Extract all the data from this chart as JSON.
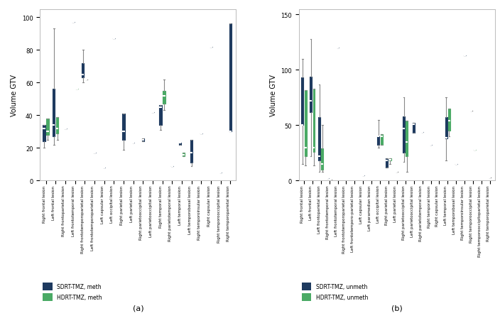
{
  "panel_a": {
    "title": "(a)",
    "ylabel": "Volume GTV",
    "ylim": [
      0,
      105
    ],
    "yticks": [
      0,
      20,
      40,
      60,
      80,
      100
    ],
    "legend": [
      "SDRT-TMZ, meth",
      "HDRT-TMZ, meth"
    ],
    "sdrt_color": "#1e3a5f",
    "hdrt_color": "#4aaa65",
    "categories": [
      "Right frontal lesion",
      "Left frontal lesion",
      "Right frontoparietal lesion",
      "Left frontotemporal lesion",
      "Right frontotemporoparietal lesion",
      "Left frontotemporoparietal lesion",
      "Left capsular lesion",
      "Left occipital lesion",
      "Right parietal lesion",
      "Left parietal lesion",
      "Right parietooccipital lesion",
      "Left parietooccipital lesion",
      "Right temporal lesion",
      "Right parietotemporal lesion",
      "Left temporal lesion",
      "Left temporobasal lesion",
      "Right temporoinsular lesion",
      "Right capsular lesion",
      "Right temporooccipital lesion",
      "Right temporoparietal lesion"
    ],
    "sdrt_boxes": [
      {
        "whislo": 20,
        "q1": 24,
        "med": 32,
        "q3": 34,
        "whishi": 34
      },
      {
        "whislo": 22,
        "q1": 27,
        "med": 34,
        "q3": 56,
        "whishi": 93
      },
      {
        "whislo": 32,
        "q1": 32,
        "med": 32,
        "q3": 32,
        "whishi": 32
      },
      {
        "whislo": 97,
        "q1": 97,
        "med": 97,
        "q3": 97,
        "whishi": 97
      },
      {
        "whislo": 60,
        "q1": 63,
        "med": 65,
        "q3": 72,
        "whishi": 80
      },
      {
        "whislo": 17,
        "q1": 17,
        "med": 17,
        "q3": 17,
        "whishi": 17
      },
      {
        "whislo": 8,
        "q1": 8,
        "med": 8,
        "q3": 8,
        "whishi": 8
      },
      {
        "whislo": 87,
        "q1": 87,
        "med": 87,
        "q3": 87,
        "whishi": 87
      },
      {
        "whislo": 19,
        "q1": 25,
        "med": 30,
        "q3": 41,
        "whishi": 41
      },
      {
        "whislo": 23,
        "q1": 23,
        "med": 23,
        "q3": 23,
        "whishi": 23
      },
      {
        "whislo": 24,
        "q1": 24,
        "med": 25,
        "q3": 26,
        "whishi": 26
      },
      {
        "whislo": 42,
        "q1": 42,
        "med": 42,
        "q3": 42,
        "whishi": 42
      },
      {
        "whislo": 31,
        "q1": 34,
        "med": 45,
        "q3": 46,
        "whishi": 46
      },
      {
        "whislo": 9,
        "q1": 9,
        "med": 9,
        "q3": 9,
        "whishi": 9
      },
      {
        "whislo": 22,
        "q1": 22,
        "med": 23,
        "q3": 23,
        "whishi": 23
      },
      {
        "whislo": 9,
        "q1": 11,
        "med": 17,
        "q3": 25,
        "whishi": 25
      },
      {
        "whislo": 29,
        "q1": 29,
        "med": 29,
        "q3": 29,
        "whishi": 29
      },
      {
        "whislo": 82,
        "q1": 82,
        "med": 82,
        "q3": 82,
        "whishi": 82
      },
      {
        "whislo": 5,
        "q1": 5,
        "med": 5,
        "q3": 5,
        "whishi": 5
      },
      {
        "whislo": 30,
        "q1": 30,
        "med": 30,
        "q3": 96,
        "whishi": 96
      }
    ],
    "hdrt_boxes": [
      {
        "whislo": 25,
        "q1": 28,
        "med": 30,
        "q3": 38,
        "whishi": 38
      },
      {
        "whislo": 25,
        "q1": 29,
        "med": 32,
        "q3": 39,
        "whishi": 39
      },
      null,
      {
        "whislo": 56,
        "q1": 56,
        "med": 56,
        "q3": 56,
        "whishi": 56
      },
      {
        "whislo": 62,
        "q1": 62,
        "med": 62,
        "q3": 62,
        "whishi": 62
      },
      null,
      null,
      null,
      null,
      null,
      null,
      null,
      {
        "whislo": 43,
        "q1": 47,
        "med": 52,
        "q3": 55,
        "whishi": 62
      },
      null,
      {
        "whislo": 15,
        "q1": 15,
        "med": 16,
        "q3": 17,
        "whishi": 17
      },
      null,
      null,
      null,
      null,
      null
    ]
  },
  "panel_b": {
    "title": "(b)",
    "ylabel": "Volume GTV",
    "ylim": [
      0,
      155
    ],
    "yticks": [
      0,
      50,
      100,
      150
    ],
    "legend": [
      "SDRT-TMZ, unmeth",
      "HDRT-TMZ, unmeth"
    ],
    "sdrt_color": "#1e3a5f",
    "hdrt_color": "#4aaa65",
    "categories": [
      "Right frontal lesion",
      "Left frontal lesion",
      "Left frontoparietal lesion",
      "Right frontotemporal lesion",
      "Left frontotemporal lesion",
      "Right frontotemporoparietal lesion",
      "Left frontotemporo-parietal lesion",
      "Left capsular lesion",
      "Left paramedian lesion",
      "Left occipital lesion",
      "Right parietal lesion",
      "Left parietal lesion",
      "Right parietooccipital lesion",
      "Left parietooccipital lesion",
      "Right parietotemporal lesion",
      "Right temporal lesion",
      "Right capsular lesion",
      "Left temporal lesion",
      "Left temporobasal lesion",
      "Right temporoinsular lesion",
      "Right temporooccipital lesion",
      "Right temporooccipitoparietal lesion",
      "Right temporoparietal lesion"
    ],
    "sdrt_boxes": [
      {
        "whislo": 15,
        "q1": 50,
        "med": 50,
        "q3": 93,
        "whishi": 110
      },
      {
        "whislo": 22,
        "q1": 62,
        "med": 72,
        "q3": 94,
        "whishi": 128
      },
      {
        "whislo": 8,
        "q1": 18,
        "med": 22,
        "q3": 57,
        "whishi": 87
      },
      {
        "whislo": 2,
        "q1": 2,
        "med": 2,
        "q3": 2,
        "whishi": 2
      },
      {
        "whislo": 120,
        "q1": 120,
        "med": 120,
        "q3": 120,
        "whishi": 120
      },
      null,
      null,
      {
        "whislo": 5,
        "q1": 5,
        "med": 5,
        "q3": 5,
        "whishi": 5
      },
      null,
      {
        "whislo": 30,
        "q1": 32,
        "med": 40,
        "q3": 40,
        "whishi": 55
      },
      {
        "whislo": 12,
        "q1": 12,
        "med": 18,
        "q3": 20,
        "whishi": 20
      },
      {
        "whislo": 8,
        "q1": 8,
        "med": 8,
        "q3": 8,
        "whishi": 8
      },
      {
        "whislo": 17,
        "q1": 25,
        "med": 47,
        "q3": 58,
        "whishi": 75
      },
      {
        "whislo": 43,
        "q1": 43,
        "med": 51,
        "q3": 52,
        "whishi": 52
      },
      {
        "whislo": 44,
        "q1": 44,
        "med": 44,
        "q3": 44,
        "whishi": 44
      },
      {
        "whislo": 32,
        "q1": 32,
        "med": 32,
        "q3": 32,
        "whishi": 32
      },
      null,
      {
        "whislo": 18,
        "q1": 38,
        "med": 39,
        "q3": 57,
        "whishi": 75
      },
      {
        "whislo": 15,
        "q1": 15,
        "med": 15,
        "q3": 15,
        "whishi": 15
      },
      {
        "whislo": 113,
        "q1": 113,
        "med": 113,
        "q3": 113,
        "whishi": 113
      },
      {
        "whislo": 63,
        "q1": 63,
        "med": 63,
        "q3": 63,
        "whishi": 63
      },
      null,
      {
        "whislo": 3,
        "q1": 3,
        "med": 3,
        "q3": 3,
        "whishi": 3
      }
    ],
    "hdrt_boxes": [
      {
        "whislo": 14,
        "q1": 22,
        "med": 30,
        "q3": 82,
        "whishi": 82
      },
      {
        "whislo": 14,
        "q1": 26,
        "med": 30,
        "q3": 83,
        "whishi": 83
      },
      {
        "whislo": 8,
        "q1": 10,
        "med": 15,
        "q3": 29,
        "whishi": 50
      },
      {
        "whislo": 1,
        "q1": 1,
        "med": 1,
        "q3": 1,
        "whishi": 1
      },
      null,
      null,
      null,
      null,
      null,
      {
        "whislo": 32,
        "q1": 32,
        "med": 40,
        "q3": 42,
        "whishi": 42
      },
      {
        "whislo": 15,
        "q1": 18,
        "med": 19,
        "q3": 20,
        "whishi": 20
      },
      null,
      {
        "whislo": 8,
        "q1": 22,
        "med": 35,
        "q3": 54,
        "whishi": 54
      },
      null,
      null,
      null,
      null,
      {
        "whislo": 40,
        "q1": 45,
        "med": 54,
        "q3": 65,
        "whishi": 65
      },
      null,
      null,
      {
        "whislo": 28,
        "q1": 28,
        "med": 28,
        "q3": 28,
        "whishi": 28
      },
      null,
      null
    ]
  }
}
